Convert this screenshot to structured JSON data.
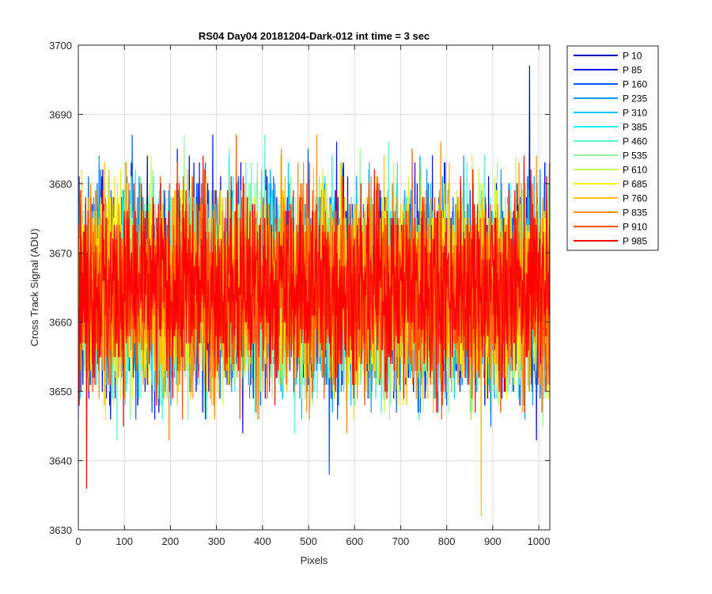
{
  "chart_data": {
    "type": "line",
    "title": "RS04 Day04 20181204-Dark-012 int time = 3 sec",
    "xlabel": "Pixels",
    "ylabel": "Cross Track Signal (ADU)",
    "xlim": [
      0,
      1024
    ],
    "ylim": [
      3630,
      3700
    ],
    "xticks": [
      0,
      100,
      200,
      300,
      400,
      500,
      600,
      700,
      800,
      900,
      1000
    ],
    "yticks": [
      3630,
      3640,
      3650,
      3660,
      3670,
      3680,
      3690,
      3700
    ],
    "grid": true,
    "legend_position": "outside-right",
    "n_points": 1024,
    "noise_profile": {
      "mean": 3665,
      "std": 7,
      "min_seen": 3632,
      "max_seen": 3697
    },
    "series": [
      {
        "name": "P 10",
        "color": "#0000b8"
      },
      {
        "name": "P 85",
        "color": "#0010ee"
      },
      {
        "name": "P 160",
        "color": "#0058ff"
      },
      {
        "name": "P 235",
        "color": "#0096ff"
      },
      {
        "name": "P 310",
        "color": "#00c8ff"
      },
      {
        "name": "P 385",
        "color": "#1ef0f0"
      },
      {
        "name": "P 460",
        "color": "#5af5c8"
      },
      {
        "name": "P 535",
        "color": "#96f596"
      },
      {
        "name": "P 610",
        "color": "#c8f55a"
      },
      {
        "name": "P 685",
        "color": "#f5f000"
      },
      {
        "name": "P 760",
        "color": "#ffc000"
      },
      {
        "name": "P 835",
        "color": "#ff8c00"
      },
      {
        "name": "P 910",
        "color": "#ff5000"
      },
      {
        "name": "P 985",
        "color": "#ff0000"
      }
    ],
    "notable_points": [
      {
        "series": "P 10",
        "x": 980,
        "y": 3697
      },
      {
        "series": "P 760",
        "x": 875,
        "y": 3632
      },
      {
        "series": "P 985",
        "x": 18,
        "y": 3636
      },
      {
        "series": "P 160",
        "x": 545,
        "y": 3638
      }
    ]
  }
}
